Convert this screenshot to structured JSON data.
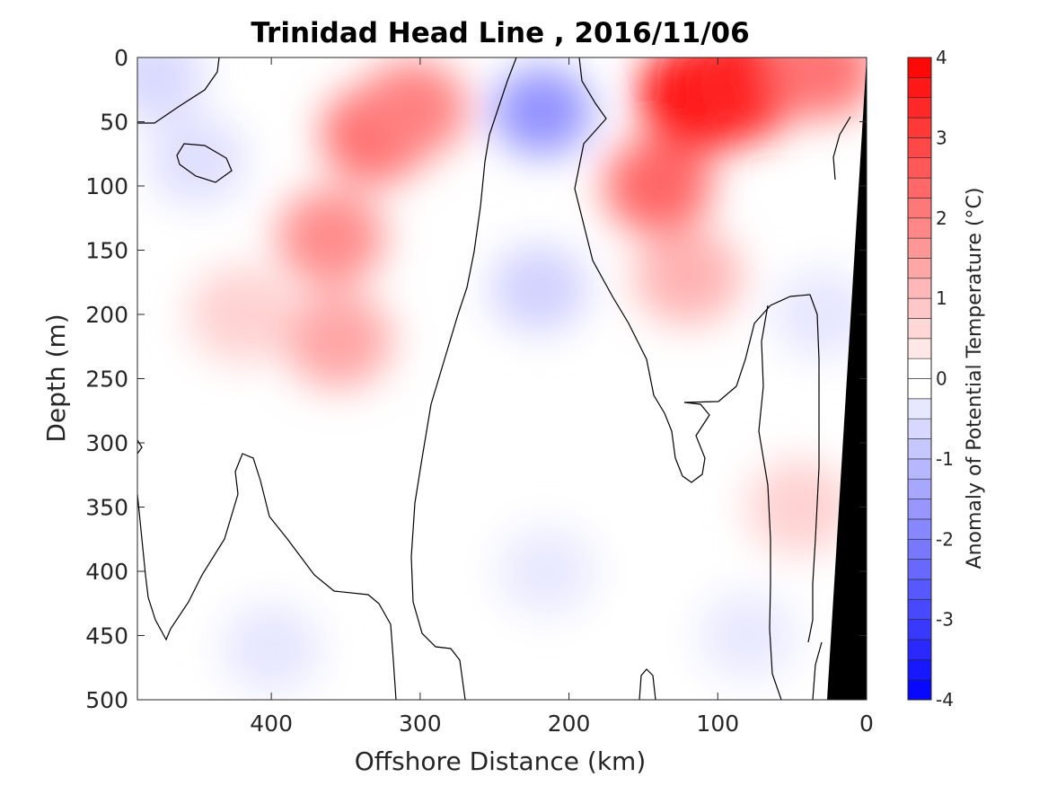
{
  "chart_data": {
    "type": "heatmap",
    "title": "Trinidad Head Line , 2016/11/06",
    "xlabel": "Offshore Distance (km)",
    "ylabel": "Depth (m)",
    "xlim": [
      490,
      0
    ],
    "ylim": [
      0,
      500
    ],
    "x_reversed": true,
    "y_reversed": true,
    "xticks": [
      400,
      300,
      200,
      100,
      0
    ],
    "yticks": [
      0,
      50,
      100,
      150,
      200,
      250,
      300,
      350,
      400,
      450,
      500
    ],
    "colorbar": {
      "label": "Anomaly of Potential Temperature (°C)",
      "range": [
        -4,
        4
      ],
      "step": 0.25,
      "ticks": [
        4,
        3,
        2,
        1,
        0,
        -1,
        -2,
        -3,
        -4
      ],
      "colormap": "blue-white-red",
      "cold_color": "#0000ff",
      "warm_color": "#ff0000",
      "neutral_color": "#ffffff"
    },
    "bottom_mask_color": "#000000",
    "features": [
      {
        "kind": "warm",
        "x": 330,
        "y": 60,
        "value": 2.3
      },
      {
        "kind": "warm",
        "x": 360,
        "y": 140,
        "value": 1.8
      },
      {
        "kind": "warm",
        "x": 355,
        "y": 220,
        "value": 1.4
      },
      {
        "kind": "warm",
        "x": 420,
        "y": 200,
        "value": 0.7
      },
      {
        "kind": "warm",
        "x": 305,
        "y": 40,
        "value": 2.0
      },
      {
        "kind": "warm",
        "x": 110,
        "y": 30,
        "value": 4.0
      },
      {
        "kind": "warm",
        "x": 85,
        "y": 20,
        "value": 3.5
      },
      {
        "kind": "warm",
        "x": 140,
        "y": 100,
        "value": 2.4
      },
      {
        "kind": "warm",
        "x": 120,
        "y": 170,
        "value": 1.2
      },
      {
        "kind": "warm",
        "x": 30,
        "y": 10,
        "value": 2.2
      },
      {
        "kind": "warm",
        "x": 45,
        "y": 350,
        "value": 0.7
      },
      {
        "kind": "cold",
        "x": 218,
        "y": 42,
        "value": -1.7
      },
      {
        "kind": "cold",
        "x": 220,
        "y": 180,
        "value": -0.7
      },
      {
        "kind": "cold",
        "x": 215,
        "y": 400,
        "value": -0.35
      },
      {
        "kind": "cold",
        "x": 400,
        "y": 460,
        "value": -0.4
      },
      {
        "kind": "cold",
        "x": 80,
        "y": 450,
        "value": -0.35
      },
      {
        "kind": "cold",
        "x": 478,
        "y": 15,
        "value": -0.6
      },
      {
        "kind": "cold",
        "x": 450,
        "y": 80,
        "value": -0.5
      },
      {
        "kind": "cold",
        "x": 30,
        "y": 200,
        "value": -0.4
      }
    ]
  }
}
